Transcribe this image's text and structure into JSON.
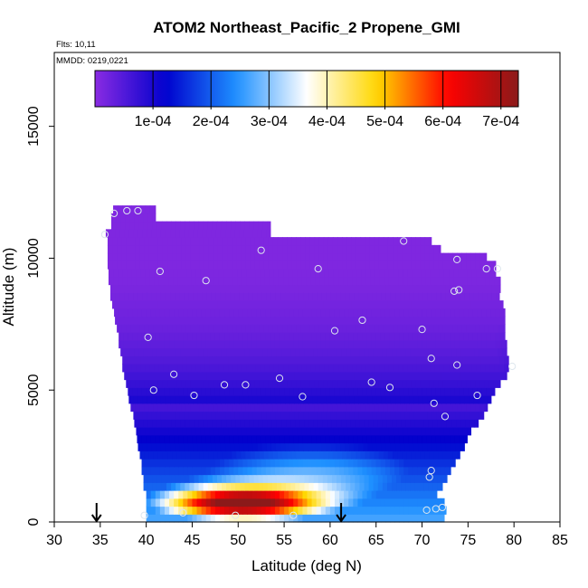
{
  "chart_data": {
    "type": "heatmap",
    "title": "ATOM2 Northeast_Pacific_2 Propene_GMI",
    "flights_note": "Flts: 10,11",
    "date_note": "MMDD: 0219,0221",
    "xlabel": "Latitude (deg N)",
    "ylabel": "Altitude (m)",
    "xlim": [
      30,
      85
    ],
    "ylim": [
      0,
      17800
    ],
    "x_ticks": [
      30,
      35,
      40,
      45,
      50,
      55,
      60,
      65,
      70,
      75,
      80,
      85
    ],
    "y_ticks": [
      0,
      5000,
      10000,
      15000
    ],
    "grid": false,
    "colorbar": {
      "placement": "top-inside",
      "range": [
        0,
        0.00073
      ],
      "tick_values": [
        0.0001,
        0.0002,
        0.0003,
        0.0004,
        0.0005,
        0.0006,
        0.0007
      ],
      "tick_labels": [
        "1e-04",
        "2e-04",
        "3e-04",
        "4e-04",
        "5e-04",
        "6e-04",
        "7e-04"
      ],
      "colors": [
        "#8a2be2",
        "#0000cd",
        "#1e90ff",
        "#ffffff",
        "#ffd700",
        "#ff0000",
        "#8b1a1a"
      ]
    },
    "curtain": {
      "alt_edges": [
        0,
        300,
        600,
        900,
        1200,
        1500,
        1800,
        2100,
        2400,
        2700,
        3000,
        3300,
        3600,
        3900,
        4200,
        4500,
        4800,
        5100,
        5400,
        5700,
        6000,
        6300,
        6600,
        6900,
        7200,
        7500,
        7800,
        8100,
        8400,
        8700,
        9000,
        9300,
        9600,
        9900,
        10200,
        10500,
        10800,
        11100,
        11400,
        11700,
        12000
      ],
      "lat_min": [
        40,
        40,
        40,
        40,
        39.7,
        39.7,
        39.5,
        39.5,
        39.3,
        39.1,
        39,
        38.9,
        38.7,
        38.6,
        38.3,
        38.1,
        38,
        37.8,
        37.6,
        37.4,
        37.4,
        37.2,
        37,
        37,
        36.8,
        36.6,
        36.5,
        36.3,
        36.1,
        36.1,
        35.9,
        35.9,
        35.8,
        35.8,
        35.8,
        35.8,
        35.6,
        36.2,
        36.2,
        36.4
      ],
      "lat_max": [
        72.4,
        72.6,
        72.4,
        71.6,
        72.2,
        72.7,
        73.1,
        73.6,
        74.1,
        74.6,
        74.9,
        75.3,
        76.1,
        76.7,
        77.1,
        77.5,
        77.9,
        78.5,
        79.2,
        79.4,
        79.4,
        79.2,
        79.2,
        79,
        79,
        79,
        79,
        78.8,
        78.4,
        78.5,
        78.5,
        78,
        78,
        77,
        72,
        71,
        53.5,
        53.5,
        41,
        41
      ],
      "center_lat": 50,
      "center_alt": 700,
      "plume_peak": 0.00065,
      "background": 1e-05,
      "mid_level": 0.00022,
      "north_level": 0.00019
    },
    "points": [
      {
        "lat": 39.8,
        "alt": 250
      },
      {
        "lat": 44.0,
        "alt": 350
      },
      {
        "lat": 49.7,
        "alt": 250
      },
      {
        "lat": 56.0,
        "alt": 250
      },
      {
        "lat": 70.5,
        "alt": 450
      },
      {
        "lat": 71.5,
        "alt": 500
      },
      {
        "lat": 72.2,
        "alt": 550
      },
      {
        "lat": 70.8,
        "alt": 1700
      },
      {
        "lat": 71.0,
        "alt": 1950
      },
      {
        "lat": 72.5,
        "alt": 4000
      },
      {
        "lat": 71.3,
        "alt": 4500
      },
      {
        "lat": 40.8,
        "alt": 5000
      },
      {
        "lat": 45.2,
        "alt": 4800
      },
      {
        "lat": 48.5,
        "alt": 5200
      },
      {
        "lat": 50.8,
        "alt": 5200
      },
      {
        "lat": 54.5,
        "alt": 5450
      },
      {
        "lat": 57.0,
        "alt": 4750
      },
      {
        "lat": 64.5,
        "alt": 5300
      },
      {
        "lat": 66.5,
        "alt": 5100
      },
      {
        "lat": 76.0,
        "alt": 4800
      },
      {
        "lat": 73.8,
        "alt": 5950
      },
      {
        "lat": 79.8,
        "alt": 5900
      },
      {
        "lat": 43.0,
        "alt": 5600
      },
      {
        "lat": 40.2,
        "alt": 7000
      },
      {
        "lat": 60.5,
        "alt": 7250
      },
      {
        "lat": 63.5,
        "alt": 7650
      },
      {
        "lat": 70.0,
        "alt": 7300
      },
      {
        "lat": 71.0,
        "alt": 6200
      },
      {
        "lat": 46.5,
        "alt": 9150
      },
      {
        "lat": 41.5,
        "alt": 9500
      },
      {
        "lat": 52.5,
        "alt": 10300
      },
      {
        "lat": 58.7,
        "alt": 9600
      },
      {
        "lat": 68.0,
        "alt": 10650
      },
      {
        "lat": 73.5,
        "alt": 8750
      },
      {
        "lat": 74.0,
        "alt": 8800
      },
      {
        "lat": 73.8,
        "alt": 9950
      },
      {
        "lat": 77.0,
        "alt": 9600
      },
      {
        "lat": 78.2,
        "alt": 9600
      },
      {
        "lat": 35.5,
        "alt": 10900
      },
      {
        "lat": 36.5,
        "alt": 11700
      },
      {
        "lat": 37.9,
        "alt": 11800
      },
      {
        "lat": 39.1,
        "alt": 11800
      }
    ],
    "arrows": [
      {
        "lat": 34.6,
        "alt": 0
      },
      {
        "lat": 61.2,
        "alt": 0
      }
    ]
  }
}
